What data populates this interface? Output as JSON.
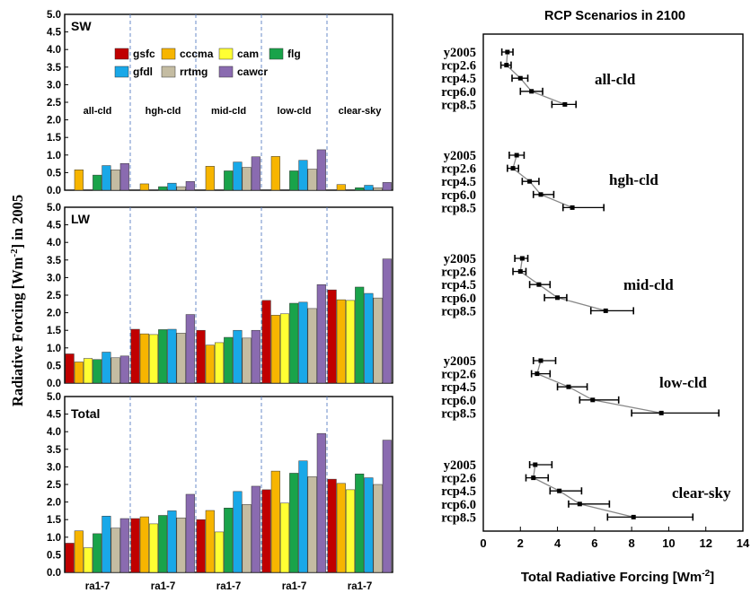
{
  "figure": {
    "ylabel_main": "Radiative  Forcing  [Wm",
    "ylabel_sup": "-2",
    "ylabel_tail": "]  in  2005"
  },
  "chart_data": [
    {
      "type": "bar",
      "panel": "SW",
      "title": "SW",
      "ylim": [
        0,
        5.0
      ],
      "ytick_labels": [
        "0.0",
        "0.5",
        "1.0",
        "1.5",
        "2.0",
        "2.5",
        "3.0",
        "3.5",
        "4.0",
        "4.5",
        "5.0"
      ],
      "legend": [
        {
          "name": "gsfc",
          "color": "#c00000"
        },
        {
          "name": "cccma",
          "color": "#f7b500"
        },
        {
          "name": "cam",
          "color": "#ffff33"
        },
        {
          "name": "flg",
          "color": "#19a34a"
        },
        {
          "name": "gfdl",
          "color": "#19a8e8"
        },
        {
          "name": "rrtmg",
          "color": "#c4bca2"
        },
        {
          "name": "cawcr",
          "color": "#8a6bb0"
        }
      ],
      "groups": [
        "all-cld",
        "hgh-cld",
        "mid-cld",
        "low-cld",
        "clear-sky"
      ],
      "series": [
        {
          "name": "gsfc",
          "color": "#c00000",
          "values": [
            0.0,
            0.0,
            0.0,
            0.0,
            0.0
          ]
        },
        {
          "name": "cccma",
          "color": "#f7b500",
          "values": [
            0.58,
            0.18,
            0.68,
            0.96,
            0.16
          ]
        },
        {
          "name": "cam",
          "color": "#ffff33",
          "values": [
            0.0,
            0.0,
            0.0,
            0.0,
            0.0
          ]
        },
        {
          "name": "flg",
          "color": "#19a34a",
          "values": [
            0.43,
            0.1,
            0.55,
            0.55,
            0.07
          ]
        },
        {
          "name": "gfdl",
          "color": "#19a8e8",
          "values": [
            0.7,
            0.2,
            0.8,
            0.85,
            0.14
          ]
        },
        {
          "name": "rrtmg",
          "color": "#c4bca2",
          "values": [
            0.58,
            0.1,
            0.65,
            0.6,
            0.07
          ]
        },
        {
          "name": "cawcr",
          "color": "#8a6bb0",
          "values": [
            0.76,
            0.25,
            0.95,
            1.15,
            0.22
          ]
        }
      ]
    },
    {
      "type": "bar",
      "panel": "LW",
      "title": "LW",
      "ylim": [
        0,
        5.0
      ],
      "ytick_labels": [
        "0.0",
        "0.5",
        "1.0",
        "1.5",
        "2.0",
        "2.5",
        "3.0",
        "3.5",
        "4.0",
        "4.5",
        "5.0"
      ],
      "groups": [
        "all-cld",
        "hgh-cld",
        "mid-cld",
        "low-cld",
        "clear-sky"
      ],
      "series": [
        {
          "name": "gsfc",
          "color": "#c00000",
          "values": [
            0.83,
            1.53,
            1.5,
            2.35,
            2.65
          ]
        },
        {
          "name": "cccma",
          "color": "#f7b500",
          "values": [
            0.6,
            1.4,
            1.08,
            1.93,
            2.37
          ]
        },
        {
          "name": "cam",
          "color": "#ffff33",
          "values": [
            0.7,
            1.38,
            1.15,
            1.97,
            2.35
          ]
        },
        {
          "name": "flg",
          "color": "#19a34a",
          "values": [
            0.67,
            1.52,
            1.3,
            2.27,
            2.73
          ]
        },
        {
          "name": "gfdl",
          "color": "#19a8e8",
          "values": [
            0.88,
            1.53,
            1.5,
            2.3,
            2.55
          ]
        },
        {
          "name": "rrtmg",
          "color": "#c4bca2",
          "values": [
            0.72,
            1.42,
            1.28,
            2.12,
            2.42
          ]
        },
        {
          "name": "cawcr",
          "color": "#8a6bb0",
          "values": [
            0.77,
            1.95,
            1.5,
            2.8,
            3.53
          ]
        }
      ]
    },
    {
      "type": "bar",
      "panel": "Total",
      "title": "Total",
      "ylim": [
        0,
        5.0
      ],
      "ytick_labels": [
        "0.0",
        "0.5",
        "1.0",
        "1.5",
        "2.0",
        "2.5",
        "3.0",
        "3.5",
        "4.0",
        "4.5",
        "5.0"
      ],
      "groups": [
        "all-cld",
        "hgh-cld",
        "mid-cld",
        "low-cld",
        "clear-sky"
      ],
      "xtick_labels": [
        "ra1-7",
        "ra1-7",
        "ra1-7",
        "ra1-7",
        "ra1-7"
      ],
      "series": [
        {
          "name": "gsfc",
          "color": "#c00000",
          "values": [
            0.83,
            1.53,
            1.5,
            2.35,
            2.65
          ]
        },
        {
          "name": "cccma",
          "color": "#f7b500",
          "values": [
            1.18,
            1.58,
            1.76,
            2.88,
            2.53
          ]
        },
        {
          "name": "cam",
          "color": "#ffff33",
          "values": [
            0.7,
            1.38,
            1.15,
            1.97,
            2.35
          ]
        },
        {
          "name": "flg",
          "color": "#19a34a",
          "values": [
            1.1,
            1.62,
            1.83,
            2.82,
            2.8
          ]
        },
        {
          "name": "gfdl",
          "color": "#19a8e8",
          "values": [
            1.6,
            1.75,
            2.3,
            3.17,
            2.69
          ]
        },
        {
          "name": "rrtmg",
          "color": "#c4bca2",
          "values": [
            1.26,
            1.55,
            1.93,
            2.72,
            2.5
          ]
        },
        {
          "name": "cawcr",
          "color": "#8a6bb0",
          "values": [
            1.53,
            2.22,
            2.45,
            3.95,
            3.76
          ]
        }
      ]
    },
    {
      "type": "scatter",
      "panel": "RCP",
      "title": "RCP Scenarios in 2100",
      "xlabel": "Total Radiative Forcing [Wm",
      "xlabel_sup": "-2",
      "xlabel_tail": "]",
      "xlim": [
        0,
        14
      ],
      "xtick_labels": [
        "0",
        "2",
        "4",
        "6",
        "8",
        "10",
        "12",
        "14"
      ],
      "groups": [
        {
          "label": "all-cld",
          "scenarios": [
            "y2005",
            "rcp2.6",
            "rcp4.5",
            "rcp6.0",
            "rcp8.5"
          ],
          "points": [
            {
              "x": 1.3,
              "lo": 1.0,
              "hi": 1.6
            },
            {
              "x": 1.25,
              "lo": 0.95,
              "hi": 1.5
            },
            {
              "x": 2.0,
              "lo": 1.55,
              "hi": 2.4
            },
            {
              "x": 2.6,
              "lo": 2.0,
              "hi": 3.2
            },
            {
              "x": 4.4,
              "lo": 3.7,
              "hi": 5.0
            }
          ]
        },
        {
          "label": "hgh-cld",
          "scenarios": [
            "y2005",
            "rcp2.6",
            "rcp4.5",
            "rcp6.0",
            "rcp8.5"
          ],
          "points": [
            {
              "x": 1.8,
              "lo": 1.4,
              "hi": 2.2
            },
            {
              "x": 1.6,
              "lo": 1.3,
              "hi": 1.9
            },
            {
              "x": 2.5,
              "lo": 2.1,
              "hi": 3.0
            },
            {
              "x": 3.1,
              "lo": 2.7,
              "hi": 3.8
            },
            {
              "x": 4.8,
              "lo": 4.3,
              "hi": 6.5
            }
          ]
        },
        {
          "label": "mid-cld",
          "scenarios": [
            "y2005",
            "rcp2.6",
            "rcp4.5",
            "rcp6.0",
            "rcp8.5"
          ],
          "points": [
            {
              "x": 2.1,
              "lo": 1.7,
              "hi": 2.4
            },
            {
              "x": 2.0,
              "lo": 1.6,
              "hi": 2.3
            },
            {
              "x": 3.0,
              "lo": 2.5,
              "hi": 3.6
            },
            {
              "x": 4.0,
              "lo": 3.3,
              "hi": 4.5
            },
            {
              "x": 6.6,
              "lo": 5.8,
              "hi": 8.1
            }
          ]
        },
        {
          "label": "low-cld",
          "scenarios": [
            "y2005",
            "rcp2.6",
            "rcp4.5",
            "rcp6.0",
            "rcp8.5"
          ],
          "points": [
            {
              "x": 3.1,
              "lo": 2.7,
              "hi": 3.9
            },
            {
              "x": 2.9,
              "lo": 2.6,
              "hi": 3.6
            },
            {
              "x": 4.6,
              "lo": 4.0,
              "hi": 5.6
            },
            {
              "x": 5.9,
              "lo": 5.2,
              "hi": 7.3
            },
            {
              "x": 9.6,
              "lo": 8.0,
              "hi": 12.7
            }
          ]
        },
        {
          "label": "clear-sky",
          "scenarios": [
            "y2005",
            "rcp2.6",
            "rcp4.5",
            "rcp6.0",
            "rcp8.5"
          ],
          "points": [
            {
              "x": 2.8,
              "lo": 2.5,
              "hi": 3.7
            },
            {
              "x": 2.7,
              "lo": 2.3,
              "hi": 3.5
            },
            {
              "x": 4.1,
              "lo": 3.6,
              "hi": 5.3
            },
            {
              "x": 5.2,
              "lo": 4.6,
              "hi": 6.8
            },
            {
              "x": 8.1,
              "lo": 6.7,
              "hi": 11.3
            }
          ]
        }
      ]
    }
  ]
}
